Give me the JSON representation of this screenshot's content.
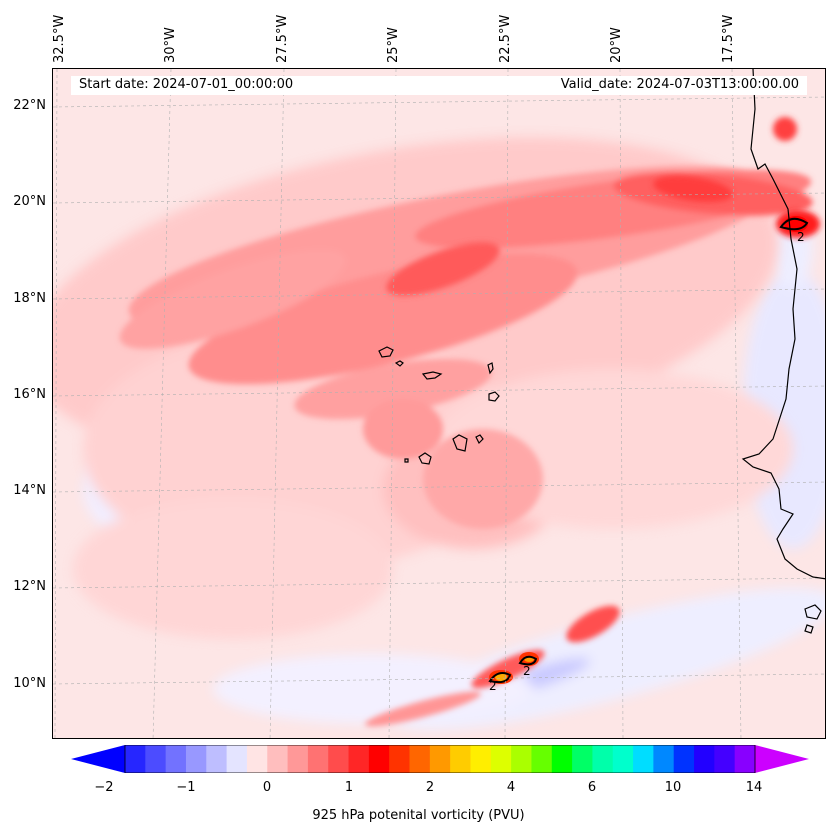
{
  "header": {
    "start_date": "Start date: 2024-07-01_00:00:00",
    "valid_date": "Valid_date: 2024-07-03T13:00:00.00"
  },
  "axes": {
    "lon_labels": [
      "32.5°W",
      "30°W",
      "27.5°W",
      "25°W",
      "22.5°W",
      "20°W",
      "17.5°W"
    ],
    "lat_labels": [
      "22°N",
      "20°N",
      "18°N",
      "16°N",
      "14°N",
      "12°N",
      "10°N"
    ]
  },
  "contour_labels": [
    "2",
    "2",
    "2"
  ],
  "colorbar": {
    "tick_labels": [
      "−2",
      "−1",
      "0",
      "1",
      "2",
      "4",
      "6",
      "10",
      "14"
    ],
    "label": "925 hPa potenital vorticity (PVU)",
    "colors": [
      "#0000ff",
      "#2626ff",
      "#4c4cff",
      "#7272ff",
      "#9898ff",
      "#bebeff",
      "#e4e4ff",
      "#ffe4e4",
      "#ffbebe",
      "#ff9898",
      "#ff7272",
      "#ff4c4c",
      "#ff2626",
      "#ff0000",
      "#ff3300",
      "#ff6600",
      "#ff9900",
      "#ffcc00",
      "#ffee00",
      "#ddff00",
      "#aaff00",
      "#66ff00",
      "#00ff00",
      "#00ff66",
      "#00ffaa",
      "#00ffcc",
      "#00ddff",
      "#0088ff",
      "#0033ff",
      "#2200ff",
      "#4400ff",
      "#8800ff",
      "#cc00ff"
    ]
  },
  "colors": {
    "background_field": "#fde6e6",
    "weak_negative": "#e4e4ff",
    "strong_positive": "#ff2626"
  }
}
